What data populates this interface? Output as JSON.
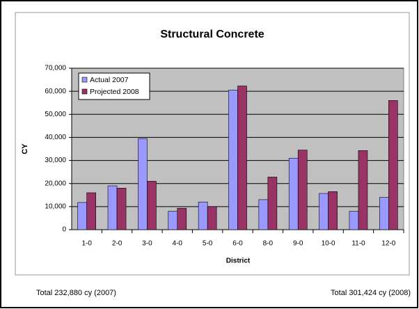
{
  "chart_data": {
    "type": "bar",
    "title": "Structural Concrete",
    "x_label": "District",
    "y_label": "CY",
    "categories": [
      "1-0",
      "2-0",
      "3-0",
      "4-0",
      "5-0",
      "6-0",
      "8-0",
      "9-0",
      "10-0",
      "11-0",
      "12-0"
    ],
    "series": [
      {
        "name": "Actual 2007",
        "color": "#9999ff",
        "values": [
          11800,
          19000,
          39500,
          8000,
          12000,
          60500,
          13000,
          31000,
          15700,
          8000,
          14000
        ]
      },
      {
        "name": "Projected 2008",
        "color": "#993366",
        "values": [
          16000,
          18000,
          21000,
          9300,
          10000,
          62300,
          22800,
          34500,
          16500,
          34300,
          56000
        ]
      }
    ],
    "ylim": [
      0,
      70000
    ],
    "yticks": [
      0,
      {
        "value": 10000,
        "label": "10,000"
      },
      {
        "value": 20000,
        "label": "20,000"
      },
      {
        "value": 30000,
        "label": "30,000"
      },
      {
        "value": 40000,
        "label": "40,000"
      },
      {
        "value": 50000,
        "label": "50,000"
      },
      {
        "value": 60000,
        "label": "60,000"
      },
      {
        "value": 70000,
        "label": "70,000"
      }
    ],
    "grid": true,
    "legend": "top-left",
    "annotations": [
      "Total 232,880 cy (2007)",
      "Total 301,424 cy (2008)"
    ]
  }
}
